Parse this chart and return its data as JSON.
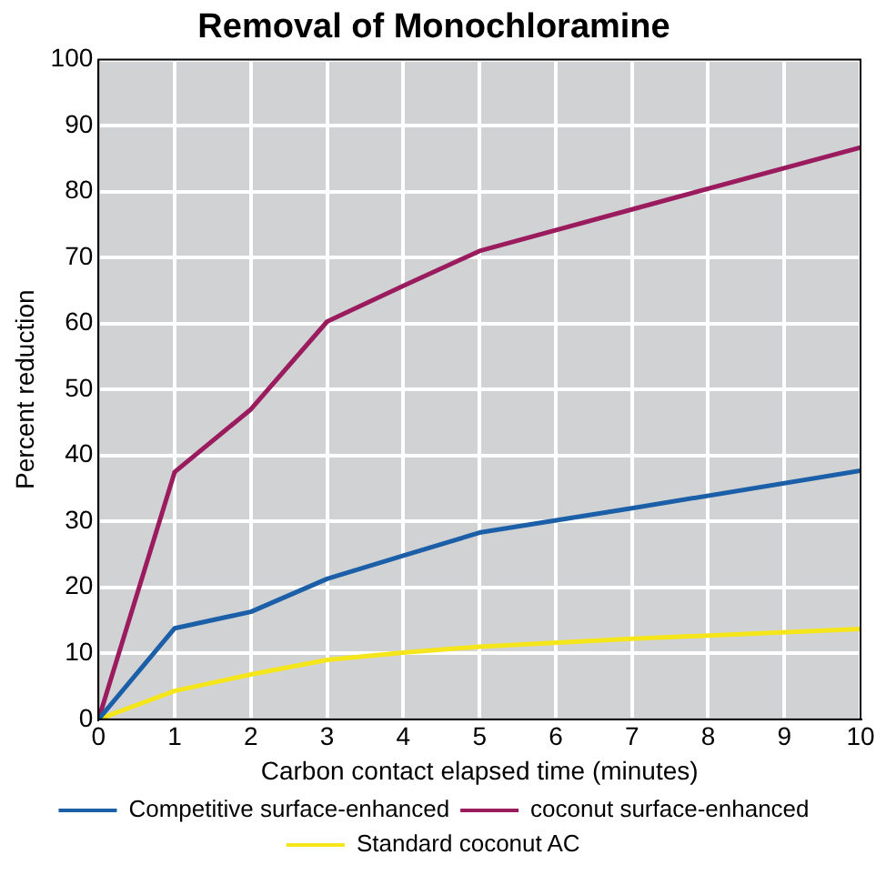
{
  "chart_data": {
    "type": "line",
    "title": "Removal of Monochloramine",
    "xlabel": "Carbon contact elapsed time (minutes)",
    "ylabel": "Percent reduction",
    "x": [
      0,
      1,
      2,
      3,
      4,
      5,
      7,
      10
    ],
    "series": [
      {
        "name": "Competitive surface-enhanced",
        "color": "#1a5fa8",
        "values": [
          0,
          13.8,
          16.3,
          21.3,
          24.8,
          28.3,
          32,
          37.7
        ]
      },
      {
        "name": "coconut surface-enhanced",
        "color": "#9b1c5e",
        "values": [
          0,
          37.5,
          47,
          60.3,
          65.7,
          71,
          77.3,
          86.7
        ]
      },
      {
        "name": "Standard coconut AC",
        "color": "#f5e51b",
        "values": [
          0,
          4.3,
          6.8,
          9,
          10.1,
          11,
          12.2,
          13.7
        ]
      }
    ],
    "xlim": [
      0,
      10
    ],
    "xticks": [
      0,
      1,
      2,
      3,
      4,
      5,
      6,
      7,
      8,
      9,
      10
    ],
    "ylim": [
      0,
      100
    ],
    "yticks": [
      0,
      10,
      20,
      30,
      40,
      50,
      60,
      70,
      80,
      90,
      100
    ],
    "grid": true,
    "legend": "bottom",
    "marker": "none",
    "line_style": "solid"
  }
}
